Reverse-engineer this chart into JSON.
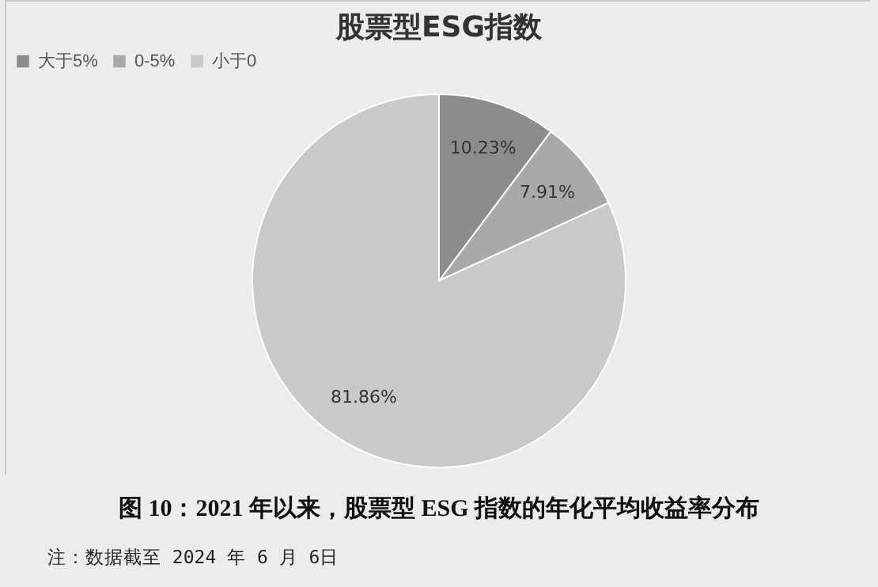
{
  "chart_data": {
    "type": "pie",
    "title": "股票型ESG指数",
    "categories": [
      "大于5%",
      "0-5%",
      "小于0"
    ],
    "values": [
      10.23,
      7.91,
      81.86
    ],
    "colors": [
      "#8c8c8c",
      "#a9a9a9",
      "#c9c9c9"
    ],
    "value_labels": [
      "10.23%",
      "7.91%",
      "81.86%"
    ],
    "legend": "top",
    "annotations": [
      "图 10：2021 年以来，股票型 ESG 指数的年化平均收益率分布",
      "注：数据截至 2024 年 6 月 6日"
    ]
  }
}
